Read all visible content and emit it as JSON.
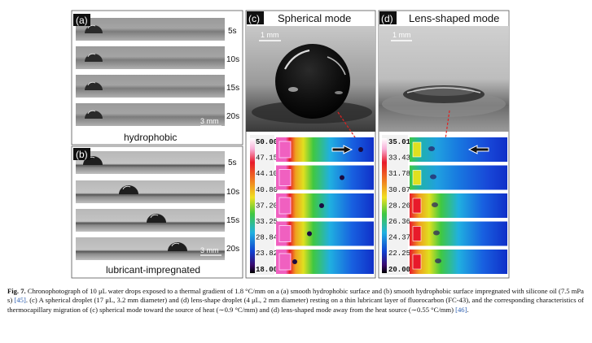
{
  "figure": {
    "panel_a": {
      "label": "(a)",
      "times": [
        "5s",
        "10s",
        "15s",
        "20s"
      ],
      "scale_bar": "3 mm",
      "caption": "hydrophobic"
    },
    "panel_b": {
      "label": "(b)",
      "times": [
        "5s",
        "10s",
        "15s",
        "20s"
      ],
      "scale_bar": "3 mm",
      "caption": "lubricant-impregnated"
    },
    "panel_c": {
      "label": "(c)",
      "title": "Spherical mode",
      "scale_bar": "1 mm",
      "colorbar_ticks": [
        "50.00",
        "47.15",
        "44.10",
        "40.80",
        "37.20",
        "33.25",
        "28.84",
        "23.82",
        "18.00"
      ]
    },
    "panel_d": {
      "label": "(d)",
      "title": "Lens-shaped mode",
      "scale_bar": "1 mm",
      "colorbar_ticks": [
        "35.01",
        "33.43",
        "31.78",
        "30.07",
        "28.26",
        "26.36",
        "24.37",
        "22.25",
        "20.00"
      ]
    }
  },
  "caption": {
    "label": "Fig. 7.",
    "text": "Chronophotograph of 10 μL water drops exposed to a thermal gradient of 1.8 °C/mm on a (a) smooth hydrophobic surface and (b) smooth hydrophobic surface impregnated with silicone oil (7.5 mPa s) ",
    "ref1": "[45]",
    "text2": ". (c) A spherical droplet (17 μL, 3.2 mm diameter) and (d) lens-shape droplet (4 μL, 2 mm diameter) resting on a thin lubricant layer of fluorocarbon (FC-43), and the corresponding characteristics of thermocapillary migration of (c) spherical mode toward the source of heat (∼0.9 °C/mm) and (d) lens-shaped mode away from the heat source (∼0.55 °C/mm) ",
    "ref2": "[46]",
    "end": "."
  },
  "colors": {
    "bar_purple": "#3a0a6e",
    "cold_blue": "#1030c8",
    "hot_red": "#e81a2a",
    "hot_pink": "#f060c0",
    "arrow_red": "#e02020",
    "link_blue": "#2a5db0"
  }
}
